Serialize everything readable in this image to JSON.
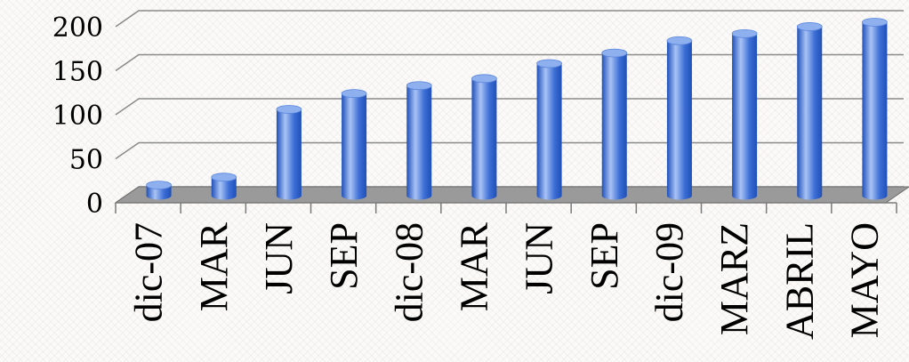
{
  "chart_data": {
    "type": "bar",
    "title": "",
    "xlabel": "",
    "ylabel": "",
    "categories": [
      "dic-07",
      "MAR",
      "JUN",
      "SEP",
      "dic-08",
      "MAR",
      "JUN",
      "SEP",
      "dic-09",
      "MARZ",
      "ABRIL",
      "MAYO"
    ],
    "values": [
      12,
      21,
      98,
      116,
      125,
      133,
      150,
      162,
      176,
      184,
      192,
      197
    ],
    "ylim": [
      0,
      200
    ],
    "yticks": [
      "0",
      "50",
      "100",
      "150",
      "200"
    ],
    "grid": true,
    "legend": "none",
    "bar_color": "#3d6fd6",
    "bar_color_light": "#a9c3f5",
    "bar_color_dark": "#1f4fb8"
  }
}
